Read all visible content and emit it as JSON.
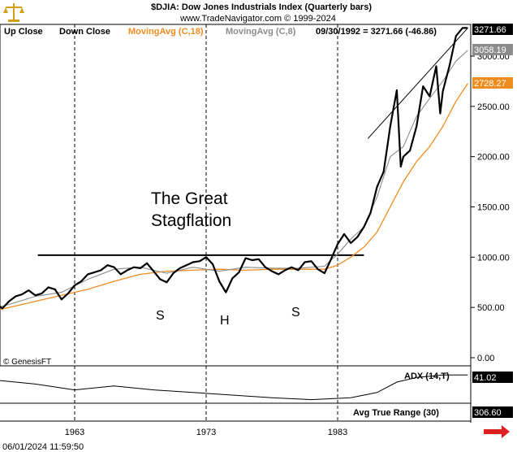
{
  "header": {
    "title": "$DJIA:  Dow Jones Industrials Index  (Quarterly bars)",
    "subtitle": "www.TradeNavigator.com © 1999-2024",
    "legend": {
      "up_close": "Up Close",
      "down_close": "Down Close",
      "ma18": "MovingAvg (C,18)",
      "ma8": "MovingAvg (C,8)",
      "readout": "09/30/1992 = 3271.66 (-46.86)"
    }
  },
  "price_tags": {
    "last": "3271.66",
    "ma8": "3058.19",
    "ma18": "2728.27"
  },
  "annotations": {
    "headline_1": "The Great",
    "headline_2": "Stagflation",
    "shoulder_left": "S",
    "head": "H",
    "shoulder_right": "S",
    "watermark": "© GenesisFT"
  },
  "indicators": {
    "adx_label": "ADX (14,T)",
    "adx_value": "41.02",
    "atr_label": "Avg True Range (30)",
    "atr_value": "306.60"
  },
  "footer": {
    "timestamp": "06/01/2024 11:59:50"
  },
  "colors": {
    "price": "#000000",
    "ma18": "#f08c1e",
    "ma8": "#8c8c8c",
    "tag_last_bg": "#000000",
    "tag_ma18_bg": "#f08c1e",
    "tag_ma8_bg": "#8c8c8c",
    "nav_arrow": "#e02020"
  },
  "chart_data": {
    "type": "line",
    "xlim": [
      1954.5,
      1993.0
    ],
    "ylim": [
      -50,
      3320
    ],
    "y_ticks": [
      0,
      500,
      1000,
      1500,
      2000,
      2500,
      3000
    ],
    "y_tick_labels": [
      "0.00",
      "500.00",
      "1000.00",
      "1500.00",
      "2000.00",
      "2500.00",
      "3000.00"
    ],
    "x_ticks": [
      1963,
      1973,
      1983
    ],
    "x_tick_labels": [
      "1963",
      "1973",
      "1983"
    ],
    "vertical_gridlines": [
      1963,
      1973,
      1983
    ],
    "resistance_line": {
      "x": [
        1960.2,
        1985.0
      ],
      "y": [
        1020,
        1020
      ]
    },
    "trend_line": {
      "x": [
        1985.3,
        1992.9
      ],
      "y": [
        2180,
        3280
      ]
    },
    "series": [
      {
        "name": "Close",
        "x": [
          1954.5,
          1955.0,
          1955.5,
          1956.0,
          1956.5,
          1957.0,
          1957.5,
          1958.0,
          1958.5,
          1959.0,
          1959.5,
          1960.0,
          1960.5,
          1961.0,
          1961.5,
          1962.0,
          1962.5,
          1963.0,
          1963.5,
          1964.0,
          1964.5,
          1965.0,
          1965.5,
          1966.0,
          1966.5,
          1967.0,
          1967.5,
          1968.0,
          1968.5,
          1969.0,
          1969.5,
          1970.0,
          1970.5,
          1971.0,
          1971.5,
          1972.0,
          1972.5,
          1973.0,
          1973.5,
          1974.0,
          1974.5,
          1975.0,
          1975.5,
          1976.0,
          1976.5,
          1977.0,
          1977.5,
          1978.0,
          1978.5,
          1979.0,
          1979.5,
          1980.0,
          1980.5,
          1981.0,
          1981.5,
          1982.0,
          1982.5,
          1983.0,
          1983.5,
          1984.0,
          1984.5,
          1985.0,
          1985.5,
          1986.0,
          1986.5,
          1987.0,
          1987.5,
          1987.8,
          1988.0,
          1988.5,
          1989.0,
          1989.5,
          1990.0,
          1990.5,
          1990.8,
          1991.0,
          1991.5,
          1992.0,
          1992.5,
          1992.9
        ],
        "y": [
          400,
          420,
          480,
          510,
          470,
          540,
          490,
          560,
          610,
          630,
          670,
          620,
          640,
          700,
          680,
          580,
          640,
          720,
          760,
          830,
          850,
          870,
          920,
          900,
          830,
          870,
          900,
          890,
          940,
          860,
          780,
          750,
          840,
          890,
          920,
          950,
          960,
          1000,
          930,
          760,
          650,
          790,
          850,
          990,
          970,
          980,
          900,
          860,
          830,
          870,
          900,
          870,
          950,
          960,
          880,
          840,
          980,
          1130,
          1230,
          1140,
          1200,
          1300,
          1440,
          1700,
          1850,
          2300,
          2660,
          1900,
          2000,
          2060,
          2300,
          2700,
          2600,
          2900,
          2430,
          2650,
          2900,
          3200,
          3280,
          3280
        ]
      },
      {
        "name": "MovingAvg (C,18)",
        "x": [
          1954.5,
          1956,
          1958,
          1960,
          1962,
          1964,
          1966,
          1968,
          1970,
          1972,
          1974,
          1976,
          1978,
          1980,
          1982,
          1983,
          1984,
          1985,
          1986,
          1987,
          1988,
          1989,
          1990,
          1991,
          1992,
          1992.9
        ],
        "y": [
          400,
          440,
          500,
          560,
          620,
          680,
          760,
          830,
          860,
          870,
          880,
          870,
          880,
          880,
          880,
          920,
          1000,
          1100,
          1250,
          1500,
          1750,
          1950,
          2100,
          2300,
          2550,
          2728
        ]
      },
      {
        "name": "MovingAvg (C,8)",
        "x": [
          1954.5,
          1956,
          1958,
          1960,
          1962,
          1964,
          1966,
          1968,
          1970,
          1972,
          1974,
          1976,
          1978,
          1980,
          1982,
          1983,
          1984,
          1985,
          1986,
          1987,
          1988,
          1989,
          1990,
          1991,
          1992,
          1992.9
        ],
        "y": [
          410,
          460,
          530,
          610,
          650,
          780,
          880,
          900,
          840,
          900,
          860,
          900,
          890,
          890,
          910,
          1030,
          1180,
          1300,
          1600,
          2000,
          2100,
          2400,
          2580,
          2750,
          2950,
          3058
        ]
      }
    ],
    "adx": {
      "x": [
        1954.5,
        1957,
        1960,
        1963,
        1966,
        1969,
        1972,
        1975,
        1978,
        1981,
        1984,
        1986,
        1987.5,
        1989,
        1991,
        1992.9
      ],
      "y": [
        41,
        33,
        27,
        18,
        24,
        18,
        14,
        10,
        6,
        3,
        6,
        14,
        30,
        37,
        41,
        41
      ],
      "ylim": [
        0,
        50
      ]
    }
  }
}
